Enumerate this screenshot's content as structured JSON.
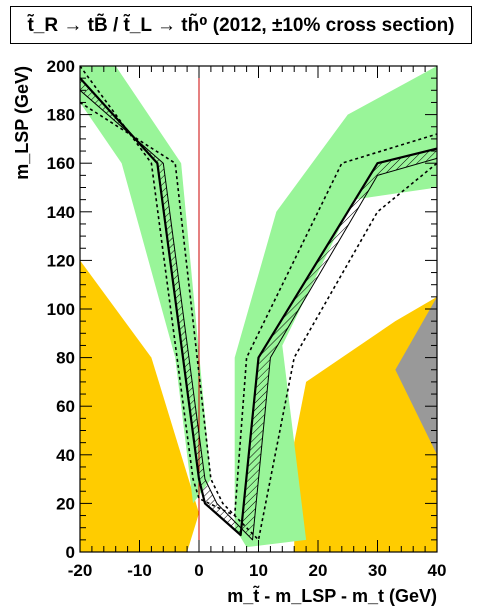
{
  "chart_data": {
    "type": "area",
    "title": "t̃_R → tB̃ / t̃_L → th̃⁰ (2012, ±10% cross section)",
    "xlabel": "m_t̃ - m_LSP - m_t (GeV)",
    "ylabel": "m_LSP (GeV)",
    "xlim": [
      -20,
      40
    ],
    "ylim": [
      0,
      200
    ],
    "xticks": [
      "-20",
      "-10",
      "0",
      "10",
      "20",
      "30",
      "40"
    ],
    "yticks": [
      "0",
      "20",
      "40",
      "60",
      "80",
      "100",
      "120",
      "140",
      "160",
      "180",
      "200"
    ],
    "grid": false,
    "reference_line_x": 0,
    "colors": {
      "green_band": "#99f599",
      "orange_region": "#ffcc00",
      "gray_region": "#999999",
      "reference_line": "#cc0000"
    },
    "regions": {
      "green_left": [
        [
          -20,
          200
        ],
        [
          -14,
          200
        ],
        [
          -3,
          160
        ],
        [
          2,
          30
        ],
        [
          -1,
          20
        ],
        [
          -4,
          80
        ],
        [
          -13,
          160
        ],
        [
          -20,
          185
        ]
      ],
      "green_right": [
        [
          8,
          2
        ],
        [
          6,
          10
        ],
        [
          6,
          80
        ],
        [
          13,
          140
        ],
        [
          25,
          180
        ],
        [
          40,
          200
        ],
        [
          40,
          150
        ],
        [
          26,
          145
        ],
        [
          14,
          85
        ],
        [
          18,
          5
        ]
      ],
      "orange_left": [
        [
          -20,
          0
        ],
        [
          -20,
          120
        ],
        [
          -8,
          80
        ],
        [
          0,
          16
        ],
        [
          -2,
          0
        ]
      ],
      "orange_right": [
        [
          16,
          0
        ],
        [
          16,
          45
        ],
        [
          18,
          70
        ],
        [
          33,
          95
        ],
        [
          40,
          105
        ],
        [
          40,
          0
        ]
      ],
      "gray_right": [
        [
          33,
          75
        ],
        [
          40,
          105
        ],
        [
          40,
          40
        ]
      ]
    },
    "series": [
      {
        "values": [
          [
            -20,
            195
          ],
          [
            -7,
            160
          ],
          [
            0,
            30
          ],
          [
            1,
            20
          ],
          [
            7,
            7
          ],
          [
            10,
            80
          ],
          [
            30,
            160
          ],
          [
            40,
            166
          ]
        ]
      },
      {
        "values": [
          [
            -20,
            190
          ],
          [
            -6,
            160
          ],
          [
            1,
            30
          ],
          [
            3,
            20
          ],
          [
            9,
            5
          ],
          [
            12,
            80
          ],
          [
            30,
            155
          ],
          [
            40,
            162
          ]
        ]
      },
      {
        "values": [
          [
            -20,
            200
          ],
          [
            -8,
            160
          ],
          [
            -1,
            30
          ],
          [
            0,
            22
          ],
          [
            6,
            15
          ],
          [
            8,
            80
          ],
          [
            24,
            160
          ],
          [
            40,
            172
          ]
        ]
      },
      {
        "values": [
          [
            -20,
            185
          ],
          [
            -4,
            160
          ],
          [
            2,
            30
          ],
          [
            4,
            20
          ],
          [
            10,
            5
          ],
          [
            16,
            80
          ],
          [
            30,
            140
          ],
          [
            40,
            160
          ]
        ]
      }
    ]
  }
}
